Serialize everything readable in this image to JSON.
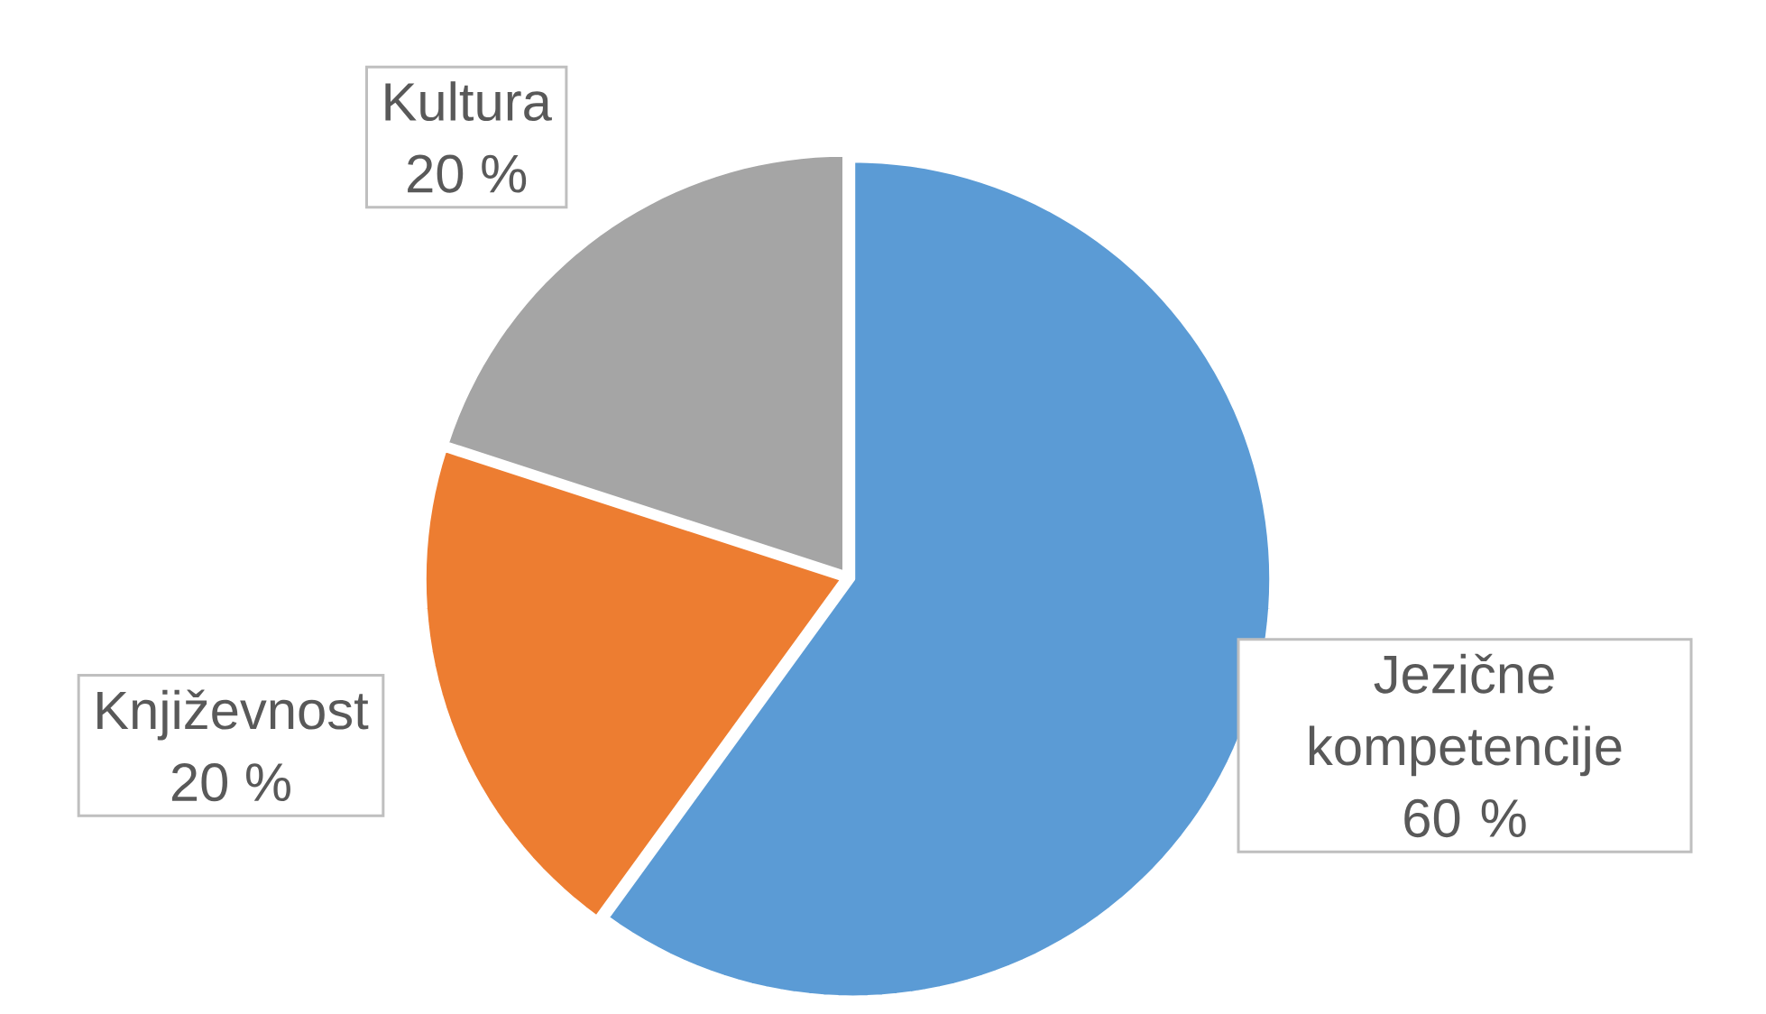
{
  "chart_data": {
    "type": "pie",
    "categories": [
      "Jezične kompetencije",
      "Književnost",
      "Kultura"
    ],
    "values": [
      60,
      20,
      20
    ],
    "colors": [
      "#5b9bd5",
      "#ed7d31",
      "#a5a5a5"
    ],
    "value_labels": [
      "60 %",
      "20 %",
      "20 %"
    ]
  }
}
